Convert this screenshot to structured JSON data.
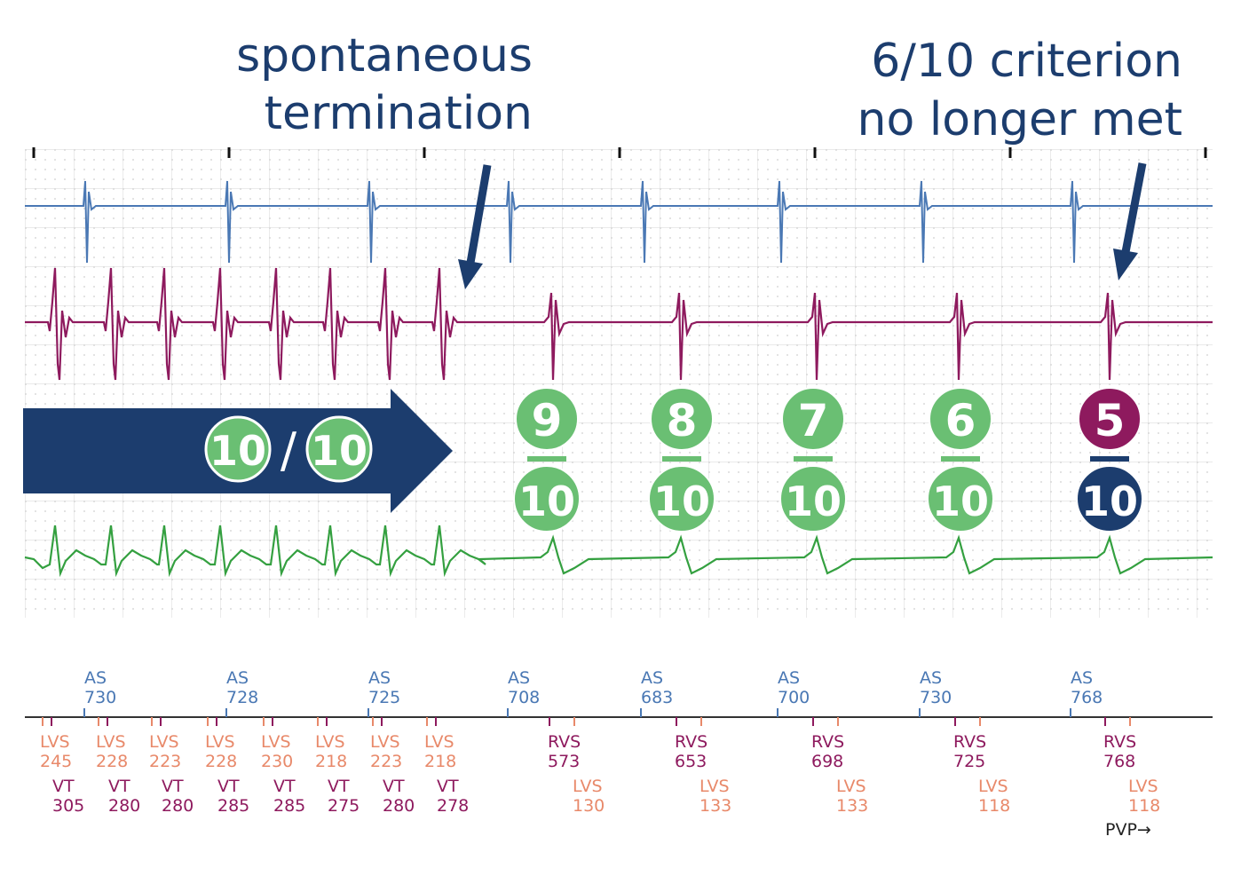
{
  "title_left": {
    "line1": "spontaneous",
    "line2": "termination"
  },
  "title_right": {
    "line1": "6/10 criterion",
    "line2": "no longer met"
  },
  "banner": {
    "numerator": "10",
    "separator": "/",
    "denominator": "10"
  },
  "counters": [
    {
      "numerator": "9",
      "denominator": "10",
      "status": "met"
    },
    {
      "numerator": "8",
      "denominator": "10",
      "status": "met"
    },
    {
      "numerator": "7",
      "denominator": "10",
      "status": "met"
    },
    {
      "numerator": "6",
      "denominator": "10",
      "status": "met"
    },
    {
      "numerator": "5",
      "denominator": "10",
      "status": "not-met"
    }
  ],
  "atrial_markers": [
    {
      "label": "AS",
      "value": "730"
    },
    {
      "label": "AS",
      "value": "728"
    },
    {
      "label": "AS",
      "value": "725"
    },
    {
      "label": "AS",
      "value": "708"
    },
    {
      "label": "AS",
      "value": "683"
    },
    {
      "label": "AS",
      "value": "700"
    },
    {
      "label": "AS",
      "value": "730"
    },
    {
      "label": "AS",
      "value": "768"
    }
  ],
  "tachy_markers": [
    {
      "lvs": "LVS",
      "lvs_value": "245",
      "vt": "VT",
      "vt_value": "305"
    },
    {
      "lvs": "LVS",
      "lvs_value": "228",
      "vt": "VT",
      "vt_value": "280"
    },
    {
      "lvs": "LVS",
      "lvs_value": "223",
      "vt": "VT",
      "vt_value": "280"
    },
    {
      "lvs": "LVS",
      "lvs_value": "228",
      "vt": "VT",
      "vt_value": "285"
    },
    {
      "lvs": "LVS",
      "lvs_value": "230",
      "vt": "VT",
      "vt_value": "285"
    },
    {
      "lvs": "LVS",
      "lvs_value": "218",
      "vt": "VT",
      "vt_value": "275"
    },
    {
      "lvs": "LVS",
      "lvs_value": "223",
      "vt": "VT",
      "vt_value": "280"
    },
    {
      "lvs": "LVS",
      "lvs_value": "218",
      "vt": "VT",
      "vt_value": "278"
    }
  ],
  "sinus_markers": [
    {
      "rvs": "RVS",
      "rvs_value": "573",
      "lvs": "LVS",
      "lvs_value": "130"
    },
    {
      "rvs": "RVS",
      "rvs_value": "653",
      "lvs": "LVS",
      "lvs_value": "133"
    },
    {
      "rvs": "RVS",
      "rvs_value": "698",
      "lvs": "LVS",
      "lvs_value": "133"
    },
    {
      "rvs": "RVS",
      "rvs_value": "725",
      "lvs": "LVS",
      "lvs_value": "118"
    },
    {
      "rvs": "RVS",
      "rvs_value": "768",
      "lvs": "LVS",
      "lvs_value": "118"
    }
  ],
  "pvp_label": "PVP→",
  "colors": {
    "navy": "#1c3d6e",
    "green": "#6abf73",
    "magenta": "#8e1a5e",
    "blue_trace": "#4a78b4",
    "green_trace": "#34a040",
    "orange": "#e8896a",
    "grid": "#d8d8d8"
  }
}
